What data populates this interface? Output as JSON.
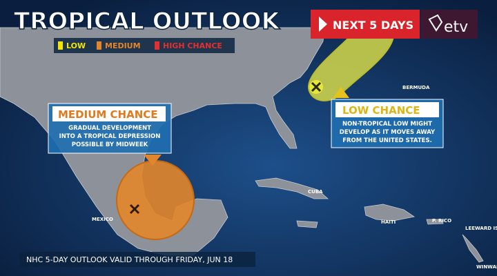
{
  "header": {
    "title": "TROPICAL OUTLOOK",
    "badge": "NEXT 5 DAYS",
    "logo": "etv"
  },
  "legend": [
    "LOW",
    "MEDIUM",
    "HIGH CHANCE"
  ],
  "callouts": [
    {
      "title": "MEDIUM CHANCE",
      "lines": [
        "GRADUAL DEVELOPMENT",
        "INTO A TROPICAL DEPRESSION",
        "POSSIBLE BY MIDWEEK"
      ]
    },
    {
      "title": "LOW CHANCE",
      "lines": [
        "NON-TROPICAL LOW MIGHT",
        "DEVELOP AS IT MOVES AWAY",
        "FROM THE UNITED STATES."
      ]
    }
  ],
  "places": [
    "BERMUDA",
    "CUBA",
    "MEXICO",
    "HAITI",
    "P. RICO",
    "LEEWARD IS.",
    "WINWAR"
  ],
  "footer": "NHC 5-DAY OUTLOOK VALID THROUGH FRIDAY, JUN 18"
}
